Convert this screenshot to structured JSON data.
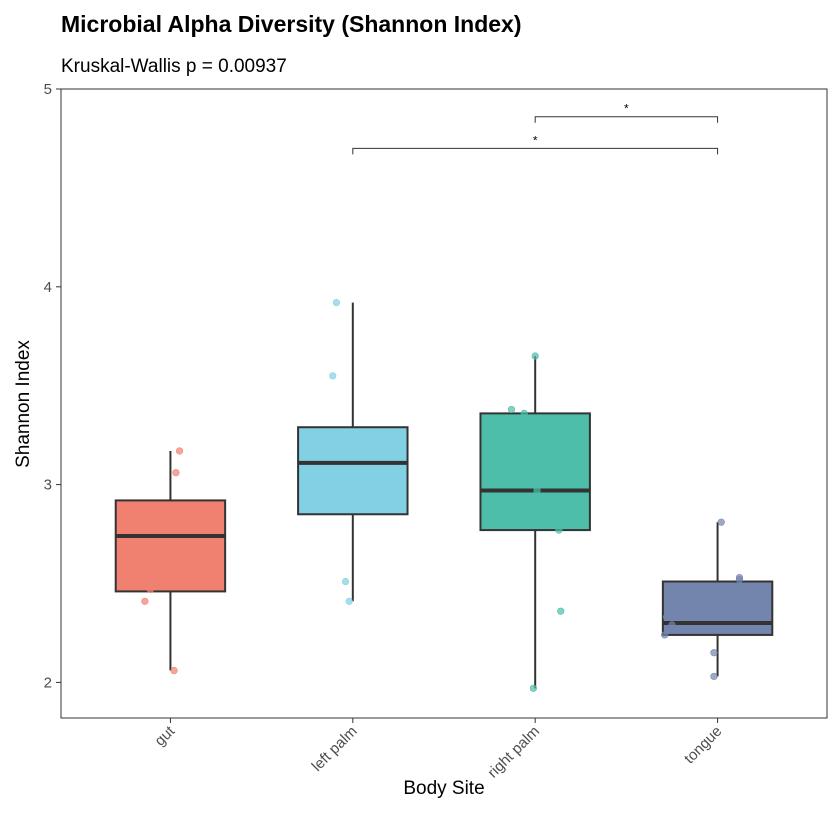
{
  "chart_data": {
    "type": "boxplot",
    "title": "Microbial Alpha Diversity (Shannon Index)",
    "subtitle": "Kruskal-Wallis p = 0.00937",
    "xlabel": "Body Site",
    "ylabel": "Shannon Index",
    "ylim": [
      1.82,
      5.0
    ],
    "yticks": [
      2,
      3,
      4,
      5
    ],
    "categories": [
      "gut",
      "left palm",
      "right palm",
      "tongue"
    ],
    "colors": [
      "#F08070",
      "#82D0E4",
      "#4DBEA9",
      "#7485AD"
    ],
    "boxes": [
      {
        "name": "gut",
        "whisker_low": 2.06,
        "q1": 2.46,
        "median": 2.74,
        "q3": 2.92,
        "whisker_high": 3.17
      },
      {
        "name": "left palm",
        "whisker_low": 2.41,
        "q1": 2.85,
        "median": 3.11,
        "q3": 3.29,
        "whisker_high": 3.92
      },
      {
        "name": "right palm",
        "whisker_low": 1.97,
        "q1": 2.77,
        "median": 2.97,
        "q3": 3.36,
        "whisker_high": 3.65
      },
      {
        "name": "tongue",
        "whisker_low": 2.03,
        "q1": 2.24,
        "median": 2.3,
        "q3": 2.51,
        "whisker_high": 2.81
      }
    ],
    "points": [
      {
        "name": "gut",
        "values": [
          2.06,
          2.41,
          2.47,
          2.62,
          2.86,
          2.88,
          3.06,
          3.17
        ],
        "jitter": [
          0.02,
          -0.14,
          -0.11,
          0.08,
          0.11,
          -0.09,
          0.03,
          0.05
        ]
      },
      {
        "name": "left palm",
        "values": [
          2.41,
          2.51,
          2.97,
          3.06,
          3.15,
          3.2,
          3.55,
          3.92
        ],
        "jitter": [
          -0.02,
          -0.04,
          -0.01,
          -0.01,
          -0.03,
          -0.15,
          -0.11,
          -0.09
        ]
      },
      {
        "name": "right palm",
        "values": [
          1.97,
          2.36,
          2.77,
          2.84,
          2.97,
          3.25,
          3.36,
          3.38,
          3.65
        ],
        "jitter": [
          -0.01,
          0.14,
          0.13,
          -0.13,
          0.01,
          0.08,
          -0.06,
          -0.13,
          0.0
        ]
      },
      {
        "name": "tongue",
        "values": [
          2.03,
          2.15,
          2.24,
          2.27,
          2.29,
          2.33,
          2.52,
          2.53,
          2.81
        ],
        "jitter": [
          -0.02,
          -0.02,
          -0.29,
          -0.25,
          -0.25,
          -0.28,
          0.12,
          0.12,
          0.02
        ]
      }
    ],
    "comparisons": [
      {
        "from": "right palm",
        "to": "tongue",
        "y": 4.86,
        "label": "*"
      },
      {
        "from": "left palm",
        "to": "tongue",
        "y": 4.7,
        "label": "*"
      }
    ],
    "grid": false,
    "legend": "none"
  }
}
